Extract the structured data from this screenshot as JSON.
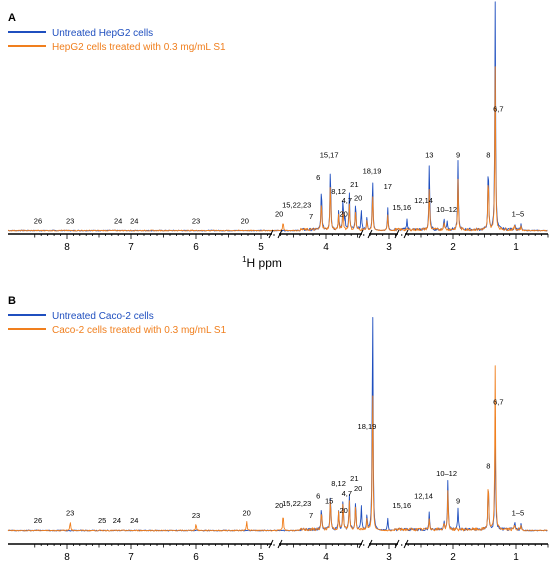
{
  "chart_data": [
    {
      "type": "line",
      "panel_label": "A",
      "xlabel_sup": "1",
      "xlabel": "H ppm",
      "x_reversed": true,
      "ticks": [
        "8",
        "7",
        "6",
        "5",
        "4",
        "3",
        "2",
        "1"
      ],
      "series": [
        {
          "name": "Untreated HepG2 cells",
          "color": "#1f4fbf"
        },
        {
          "name": "HepG2 cells treated with 0.3 mg/mL S1",
          "color": "#f07f1e"
        }
      ],
      "peaks": {
        "blue": [
          [
            1.33,
            1.0
          ],
          [
            1.44,
            0.31
          ],
          [
            1.92,
            0.3
          ],
          [
            2.37,
            0.3
          ],
          [
            3.26,
            0.24
          ],
          [
            3.93,
            0.3
          ],
          [
            4.07,
            0.2
          ],
          [
            3.73,
            0.14
          ],
          [
            3.63,
            0.16
          ],
          [
            3.53,
            0.12
          ],
          [
            3.44,
            0.09
          ],
          [
            3.02,
            0.1
          ],
          [
            2.72,
            0.05
          ],
          [
            2.14,
            0.05
          ],
          [
            2.09,
            0.04
          ],
          [
            1.02,
            0.03
          ],
          [
            0.92,
            0.03
          ],
          [
            3.8,
            0.08
          ],
          [
            3.7,
            0.07
          ],
          [
            3.35,
            0.06
          ]
        ],
        "orange": [
          [
            1.33,
            0.71
          ],
          [
            1.44,
            0.26
          ],
          [
            1.92,
            0.22
          ],
          [
            2.37,
            0.19
          ],
          [
            3.26,
            0.17
          ],
          [
            3.93,
            0.22
          ],
          [
            4.07,
            0.14
          ],
          [
            3.73,
            0.1
          ],
          [
            3.63,
            0.12
          ],
          [
            3.53,
            0.09
          ],
          [
            3.02,
            0.07
          ],
          [
            4.66,
            0.04
          ],
          [
            2.14,
            0.04
          ],
          [
            1.02,
            0.02
          ],
          [
            0.92,
            0.02
          ],
          [
            3.8,
            0.06
          ],
          [
            3.35,
            0.05
          ]
        ]
      },
      "annotations": [
        {
          "text": "26",
          "ppm": 8.45,
          "h": 0.02
        },
        {
          "text": "23",
          "ppm": 7.95,
          "h": 0.02
        },
        {
          "text": "24",
          "ppm": 7.2,
          "h": 0.02
        },
        {
          "text": "24",
          "ppm": 6.95,
          "h": 0.02
        },
        {
          "text": "23",
          "ppm": 6.0,
          "h": 0.02
        },
        {
          "text": "20",
          "ppm": 5.25,
          "h": 0.02
        },
        {
          "text": "20",
          "ppm": 4.72,
          "h": 0.05
        },
        {
          "text": "15,22,23",
          "ppm": 4.45,
          "h": 0.09
        },
        {
          "text": "7",
          "ppm": 4.23,
          "h": 0.04
        },
        {
          "text": "6",
          "ppm": 4.12,
          "h": 0.21
        },
        {
          "text": "15,17",
          "ppm": 3.95,
          "h": 0.31
        },
        {
          "text": "8,12",
          "ppm": 3.8,
          "h": 0.15
        },
        {
          "text": "4,7",
          "ppm": 3.67,
          "h": 0.11
        },
        {
          "text": "20",
          "ppm": 3.72,
          "h": 0.05
        },
        {
          "text": "21",
          "ppm": 3.55,
          "h": 0.18
        },
        {
          "text": "20",
          "ppm": 3.49,
          "h": 0.12
        },
        {
          "text": "18,19",
          "ppm": 3.27,
          "h": 0.24
        },
        {
          "text": "17",
          "ppm": 3.02,
          "h": 0.17
        },
        {
          "text": "15,16",
          "ppm": 2.8,
          "h": 0.08
        },
        {
          "text": "12,14",
          "ppm": 2.46,
          "h": 0.11
        },
        {
          "text": "13",
          "ppm": 2.37,
          "h": 0.31
        },
        {
          "text": "10–12",
          "ppm": 2.1,
          "h": 0.07
        },
        {
          "text": "9",
          "ppm": 1.92,
          "h": 0.31
        },
        {
          "text": "8",
          "ppm": 1.44,
          "h": 0.31
        },
        {
          "text": "6,7",
          "ppm": 1.28,
          "h": 0.51
        },
        {
          "text": "1–5",
          "ppm": 0.97,
          "h": 0.05
        }
      ]
    },
    {
      "type": "line",
      "panel_label": "B",
      "xlabel_sup": "",
      "xlabel": "",
      "x_reversed": true,
      "ticks": [
        "8",
        "7",
        "6",
        "5",
        "4",
        "3",
        "2",
        "1"
      ],
      "series": [
        {
          "name": "Untreated Caco-2 cells",
          "color": "#1f4fbf"
        },
        {
          "name": "Caco-2 cells treated with 0.3 mg/mL S1",
          "color": "#f07f1e"
        }
      ],
      "peaks": {
        "blue": [
          [
            3.26,
            1.0
          ],
          [
            1.33,
            0.45
          ],
          [
            1.44,
            0.22
          ],
          [
            2.08,
            0.2
          ],
          [
            1.92,
            0.09
          ],
          [
            3.93,
            0.16
          ],
          [
            3.73,
            0.14
          ],
          [
            3.63,
            0.14
          ],
          [
            3.53,
            0.13
          ],
          [
            3.44,
            0.1
          ],
          [
            4.07,
            0.1
          ],
          [
            2.37,
            0.07
          ],
          [
            3.02,
            0.05
          ],
          [
            2.14,
            0.04
          ],
          [
            1.02,
            0.03
          ],
          [
            0.92,
            0.03
          ],
          [
            3.8,
            0.08
          ],
          [
            3.35,
            0.06
          ]
        ],
        "orange": [
          [
            1.33,
            0.66
          ],
          [
            3.26,
            0.63
          ],
          [
            1.44,
            0.22
          ],
          [
            2.08,
            0.16
          ],
          [
            3.93,
            0.13
          ],
          [
            3.73,
            0.12
          ],
          [
            3.63,
            0.12
          ],
          [
            3.53,
            0.11
          ],
          [
            4.07,
            0.08
          ],
          [
            4.66,
            0.07
          ],
          [
            7.95,
            0.04
          ],
          [
            6.0,
            0.03
          ],
          [
            5.22,
            0.04
          ],
          [
            2.37,
            0.05
          ],
          [
            2.14,
            0.03
          ],
          [
            1.02,
            0.02
          ],
          [
            0.92,
            0.02
          ],
          [
            3.8,
            0.07
          ],
          [
            3.35,
            0.05
          ]
        ]
      },
      "annotations": [
        {
          "text": "26",
          "ppm": 8.45,
          "h": 0.02
        },
        {
          "text": "23",
          "ppm": 7.95,
          "h": 0.05
        },
        {
          "text": "25",
          "ppm": 7.45,
          "h": 0.02
        },
        {
          "text": "24",
          "ppm": 7.22,
          "h": 0.02
        },
        {
          "text": "24",
          "ppm": 6.95,
          "h": 0.02
        },
        {
          "text": "23",
          "ppm": 6.0,
          "h": 0.04
        },
        {
          "text": "20",
          "ppm": 5.22,
          "h": 0.05
        },
        {
          "text": "20",
          "ppm": 4.72,
          "h": 0.08
        },
        {
          "text": "15,22,23",
          "ppm": 4.45,
          "h": 0.09
        },
        {
          "text": "7",
          "ppm": 4.23,
          "h": 0.04
        },
        {
          "text": "6",
          "ppm": 4.12,
          "h": 0.12
        },
        {
          "text": "15",
          "ppm": 3.95,
          "h": 0.1
        },
        {
          "text": "8,12",
          "ppm": 3.8,
          "h": 0.17
        },
        {
          "text": "4,7",
          "ppm": 3.67,
          "h": 0.13
        },
        {
          "text": "20",
          "ppm": 3.72,
          "h": 0.06
        },
        {
          "text": "21",
          "ppm": 3.55,
          "h": 0.19
        },
        {
          "text": "20",
          "ppm": 3.49,
          "h": 0.15
        },
        {
          "text": "18,19",
          "ppm": 3.35,
          "h": 0.4
        },
        {
          "text": "15,16",
          "ppm": 2.8,
          "h": 0.08
        },
        {
          "text": "12,14",
          "ppm": 2.46,
          "h": 0.12
        },
        {
          "text": "10–12",
          "ppm": 2.1,
          "h": 0.21
        },
        {
          "text": "9",
          "ppm": 1.92,
          "h": 0.1
        },
        {
          "text": "8",
          "ppm": 1.44,
          "h": 0.24
        },
        {
          "text": "6,7",
          "ppm": 1.28,
          "h": 0.5
        },
        {
          "text": "1–5",
          "ppm": 0.97,
          "h": 0.05
        }
      ]
    }
  ]
}
